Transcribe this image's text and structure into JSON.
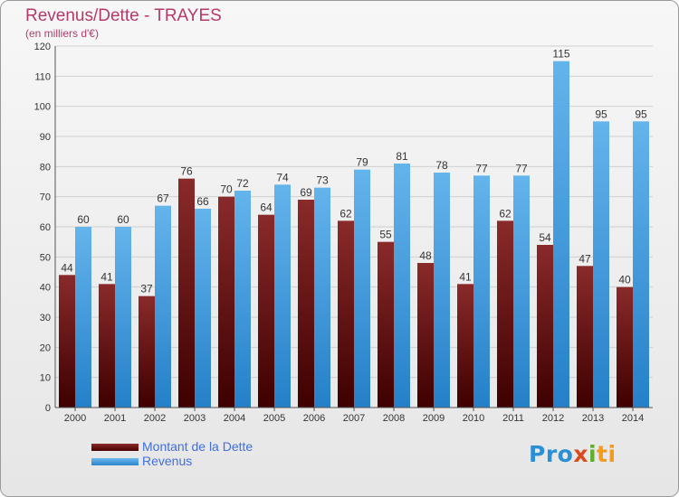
{
  "chart_data": {
    "type": "bar",
    "title": "Revenus/Dette - TRAYES",
    "subtitle": "(en milliers d'€)",
    "categories": [
      "2000",
      "2001",
      "2002",
      "2003",
      "2004",
      "2005",
      "2006",
      "2007",
      "2008",
      "2009",
      "2010",
      "2011",
      "2012",
      "2013",
      "2014"
    ],
    "series": [
      {
        "name": "Montant de la Dette",
        "color": "#6b0f0f",
        "values": [
          44,
          41,
          37,
          76,
          70,
          64,
          69,
          62,
          55,
          48,
          41,
          62,
          54,
          47,
          40
        ]
      },
      {
        "name": "Revenus",
        "color": "#3d9be0",
        "values": [
          60,
          60,
          67,
          66,
          72,
          74,
          73,
          79,
          81,
          78,
          77,
          77,
          115,
          95,
          95
        ]
      }
    ],
    "y_ticks": [
      0,
      10,
      20,
      30,
      40,
      50,
      60,
      70,
      80,
      90,
      100,
      110,
      120
    ],
    "ylim": [
      0,
      120
    ],
    "grid": true,
    "legend_position": "bottom-left"
  },
  "logo": {
    "parts": [
      "Pro",
      "x",
      "i",
      "ti"
    ]
  }
}
